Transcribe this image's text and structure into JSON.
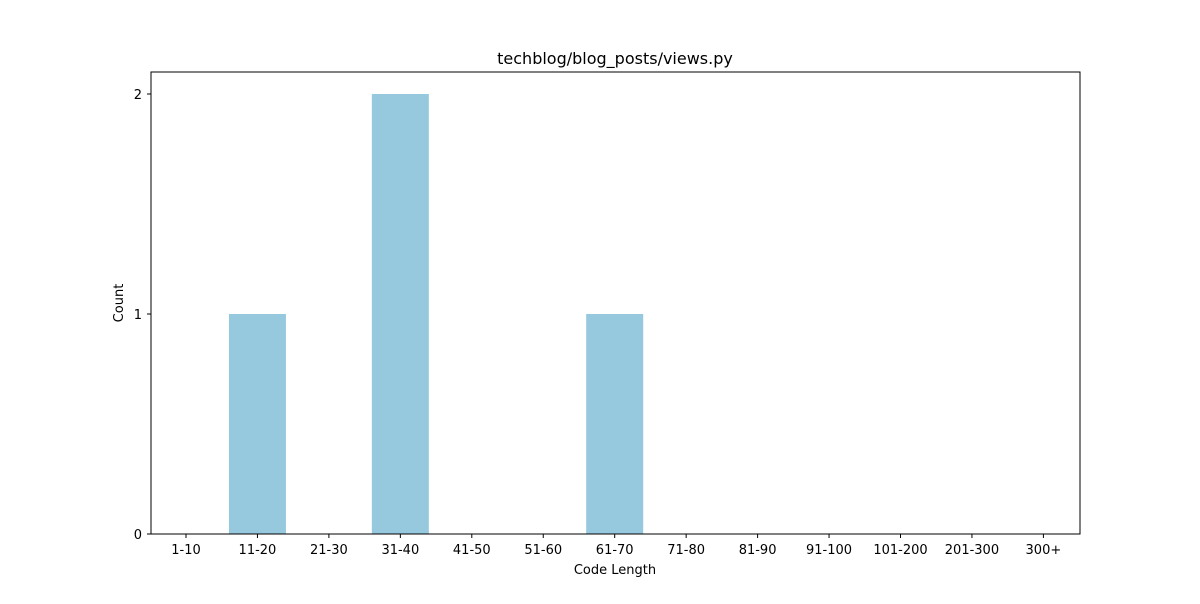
{
  "chart_data": {
    "type": "bar",
    "title": "techblog/blog_posts/views.py",
    "xlabel": "Code Length",
    "ylabel": "Count",
    "categories": [
      "1-10",
      "11-20",
      "21-30",
      "31-40",
      "41-50",
      "51-60",
      "61-70",
      "71-80",
      "81-90",
      "91-100",
      "101-200",
      "201-300",
      "300+"
    ],
    "values": [
      0,
      1,
      0,
      2,
      0,
      0,
      1,
      0,
      0,
      0,
      0,
      0,
      0
    ],
    "yticks": [
      0,
      1,
      2
    ],
    "ylim": [
      0,
      2.1
    ],
    "grid": false,
    "bar_color": "#96c9de"
  }
}
